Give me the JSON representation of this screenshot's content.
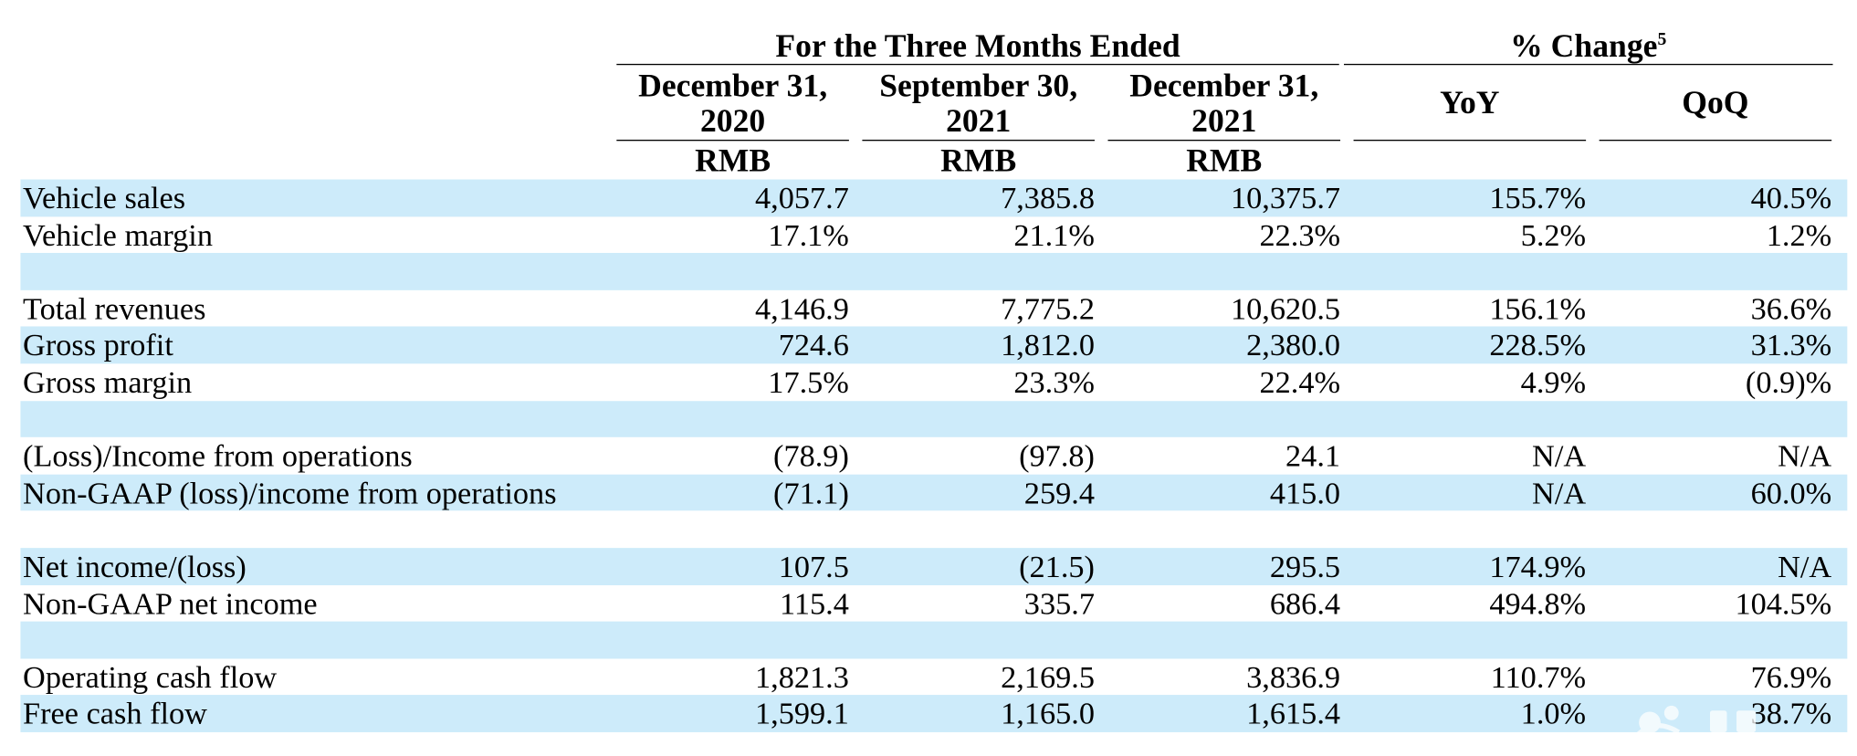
{
  "header": {
    "group1": "For the Three Months Ended",
    "group2": "% Change",
    "group2_footnote": "5",
    "col1": "December 31, 2020",
    "col2": "September 30, 2021",
    "col3": "December 31, 2021",
    "col4": "YoY",
    "col5": "QoQ",
    "currency": "RMB"
  },
  "rows": [
    {
      "label": "Vehicle sales",
      "c1": "4,057.7",
      "c2": "7,385.8",
      "c3": "10,375.7",
      "c4": "155.7%",
      "c5": "40.5%",
      "shade": true
    },
    {
      "label": "Vehicle margin",
      "c1": "17.1%",
      "c2": "21.1%",
      "c3": "22.3%",
      "c4": "5.2%",
      "c5": "1.2%",
      "shade": false
    },
    {
      "label": "",
      "c1": "",
      "c2": "",
      "c3": "",
      "c4": "",
      "c5": "",
      "shade": true
    },
    {
      "label": "Total revenues",
      "c1": "4,146.9",
      "c2": "7,775.2",
      "c3": "10,620.5",
      "c4": "156.1%",
      "c5": "36.6%",
      "shade": false
    },
    {
      "label": "Gross profit",
      "c1": "724.6",
      "c2": "1,812.0",
      "c3": "2,380.0",
      "c4": "228.5%",
      "c5": "31.3%",
      "shade": true
    },
    {
      "label": "Gross margin",
      "c1": "17.5%",
      "c2": "23.3%",
      "c3": "22.4%",
      "c4": "4.9%",
      "c5": "(0.9)%",
      "shade": false
    },
    {
      "label": "",
      "c1": "",
      "c2": "",
      "c3": "",
      "c4": "",
      "c5": "",
      "shade": true
    },
    {
      "label": "(Loss)/Income from operations",
      "c1": "(78.9)",
      "c2": "(97.8)",
      "c3": "24.1",
      "c4": "N/A",
      "c5": "N/A",
      "shade": false
    },
    {
      "label": "Non-GAAP (loss)/income from operations",
      "c1": "(71.1)",
      "c2": "259.4",
      "c3": "415.0",
      "c4": "N/A",
      "c5": "60.0%",
      "shade": true
    },
    {
      "label": "",
      "c1": "",
      "c2": "",
      "c3": "",
      "c4": "",
      "c5": "",
      "shade": false
    },
    {
      "label": "Net income/(loss)",
      "c1": "107.5",
      "c2": "(21.5)",
      "c3": "295.5",
      "c4": "174.9%",
      "c5": "N/A",
      "shade": true
    },
    {
      "label": "Non-GAAP net income",
      "c1": "115.4",
      "c2": "335.7",
      "c3": "686.4",
      "c4": "494.8%",
      "c5": "104.5%",
      "shade": false
    },
    {
      "label": "",
      "c1": "",
      "c2": "",
      "c3": "",
      "c4": "",
      "c5": "",
      "shade": true
    },
    {
      "label": "Operating cash flow",
      "c1": "1,821.3",
      "c2": "2,169.5",
      "c3": "3,836.9",
      "c4": "110.7%",
      "c5": "76.9%",
      "shade": false
    },
    {
      "label": "Free cash flow",
      "c1": "1,599.1",
      "c2": "1,165.0",
      "c3": "1,615.4",
      "c4": "1.0%",
      "c5": "38.7%",
      "shade": true
    }
  ],
  "colors": {
    "row_shade": "#cdebfa",
    "text": "#000000"
  },
  "watermark": {
    "icon": "watermark-logo-icon"
  }
}
